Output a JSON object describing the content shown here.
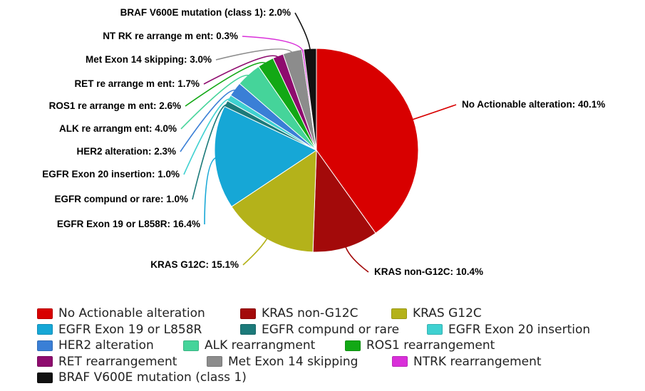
{
  "chart_data": {
    "type": "pie",
    "title": "",
    "slices": [
      {
        "label": "No Actionable alteration",
        "value": 40.1,
        "display": "No Actionable alteration: 40.1%",
        "color": "#d80000",
        "legend": "No Actionable alteration"
      },
      {
        "label": "KRAS non-G12C",
        "value": 10.4,
        "display": "KRAS non-G12C: 10.4%",
        "color": "#a30a0a",
        "legend": "KRAS non-G12C"
      },
      {
        "label": "KRAS G12C",
        "value": 15.1,
        "display": "KRAS G12C: 15.1%",
        "color": "#b4b21a",
        "legend": "KRAS G12C"
      },
      {
        "label": "EGFR Exon 19 or L858R",
        "value": 16.4,
        "display": "EGFR Exon 19 or L858R: 16.4%",
        "color": "#16a7d6",
        "legend": "EGFR Exon 19 or L858R"
      },
      {
        "label": "EGFR compund or rare",
        "value": 1.0,
        "display": "EGFR compund or rare: 1.0%",
        "color": "#1c7a7a",
        "legend": "EGFR compund or rare"
      },
      {
        "label": "EGFR Exon 20 insertion",
        "value": 1.0,
        "display": "EGFR Exon 20 insertion: 1.0%",
        "color": "#3fd1d1",
        "legend": "EGFR Exon 20 insertion"
      },
      {
        "label": "HER2 alteration",
        "value": 2.3,
        "display": "HER2 alteration: 2.3%",
        "color": "#3a7fd6",
        "legend": "HER2 alteration"
      },
      {
        "label": "ALK rearrangment",
        "value": 4.0,
        "display": "ALK re arrangm ent: 4.0%",
        "color": "#45d49a",
        "legend": "ALK rearrangment"
      },
      {
        "label": "ROS1 rearrangement",
        "value": 2.6,
        "display": "ROS1 re arrange m ent: 2.6%",
        "color": "#12a815",
        "legend": "ROS1 rearrangement"
      },
      {
        "label": "RET rearrangement",
        "value": 1.7,
        "display": "RET re arrange m ent: 1.7%",
        "color": "#8e0b6e",
        "legend": "RET rearrangement"
      },
      {
        "label": "Met Exon 14 skipping",
        "value": 3.0,
        "display": "Met Exon 14 skipping: 3.0%",
        "color": "#8c8c8c",
        "legend": "Met Exon 14 skipping"
      },
      {
        "label": "NTRK rearrangement",
        "value": 0.3,
        "display": "NT RK re arrange m ent: 0.3%",
        "color": "#d92fd9",
        "legend": "NTRK rearrangement"
      },
      {
        "label": "BRAF V600E mutation (class 1)",
        "value": 2.0,
        "display": "BRAF V600E mutation (class 1): 2.0%",
        "color": "#111111",
        "legend": "BRAF V600E mutation (class 1)"
      }
    ],
    "start_angle_deg": 0,
    "direction": "clockwise",
    "legend_position": "bottom"
  }
}
